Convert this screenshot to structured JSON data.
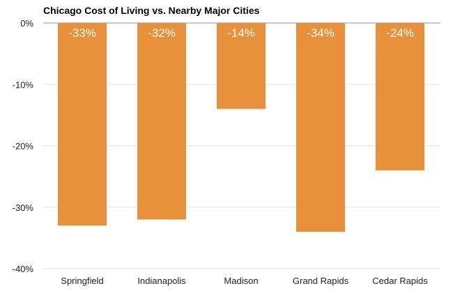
{
  "chart_data": {
    "type": "bar",
    "title": "Chicago Cost of Living vs. Nearby Major Cities",
    "xlabel": "",
    "ylabel": "",
    "categories": [
      "Springfield",
      "Indianapolis",
      "Madison",
      "Grand Rapids",
      "Cedar Rapids"
    ],
    "values": [
      -33,
      -32,
      -14,
      -34,
      -24
    ],
    "data_labels": [
      "-33%",
      "-32%",
      "-14%",
      "-34%",
      "-24%"
    ],
    "ylim": [
      -40,
      0
    ],
    "yticks": [
      0,
      -10,
      -20,
      -30,
      -40
    ],
    "ytick_labels": [
      "0%",
      "-10%",
      "-20%",
      "-30%",
      "-40%"
    ],
    "grid": true,
    "legend": "none",
    "bar_color": "#e8913a"
  }
}
